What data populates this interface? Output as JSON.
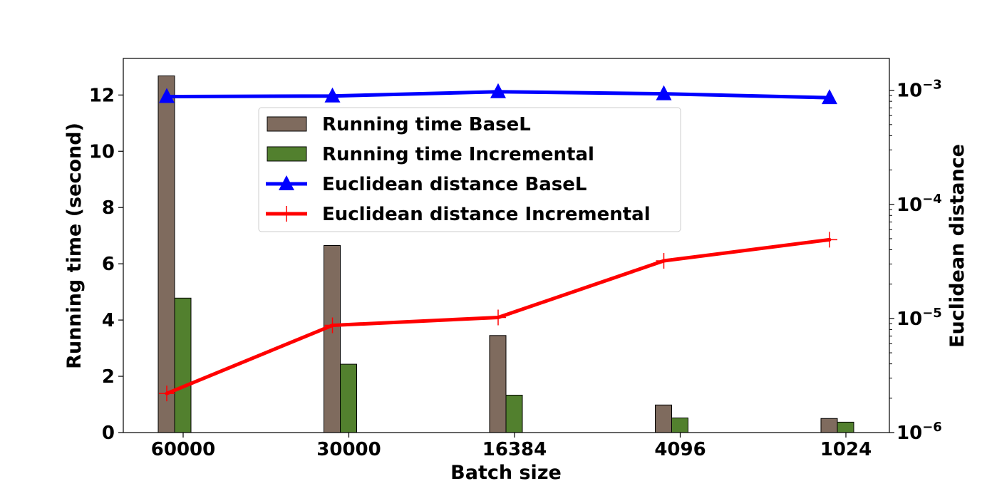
{
  "chart_data": {
    "type": "bar",
    "title": "",
    "xlabel": "Batch size",
    "ylabel": "Running time (second)",
    "y2label": "Euclidean distance",
    "categories": [
      "60000",
      "30000",
      "16384",
      "4096",
      "1024"
    ],
    "ylim": [
      0,
      13.3
    ],
    "yticks": [
      "0",
      "2",
      "4",
      "6",
      "8",
      "10",
      "12"
    ],
    "y2scale": "log",
    "y2lim": [
      1e-06,
      0.0019
    ],
    "y2ticks": [
      {
        "base": "10",
        "exp": "−6",
        "value": 1e-06
      },
      {
        "base": "10",
        "exp": "−5",
        "value": 1e-05
      },
      {
        "base": "10",
        "exp": "−4",
        "value": 0.0001
      },
      {
        "base": "10",
        "exp": "−3",
        "value": 0.001
      }
    ],
    "legend_position": "upper-center",
    "grid": false,
    "bar_series": [
      {
        "name": "Running time BaseL",
        "values": [
          12.68,
          6.65,
          3.45,
          0.98,
          0.5
        ],
        "color": "#7f6b5e"
      },
      {
        "name": "Running time Incremental",
        "values": [
          4.78,
          2.43,
          1.33,
          0.52,
          0.37
        ],
        "color": "#52802e"
      }
    ],
    "line_series": [
      {
        "name": "Euclidean distance BaseL",
        "values": [
          0.00088,
          0.00089,
          0.00097,
          0.00093,
          0.00086
        ],
        "color": "#0000ff",
        "marker": "triangle"
      },
      {
        "name": "Euclidean distance Incremental",
        "values": [
          2.2e-06,
          8.7e-06,
          1.02e-05,
          3.2e-05,
          4.9e-05
        ],
        "color": "#ff0000",
        "marker": "plus"
      }
    ]
  }
}
